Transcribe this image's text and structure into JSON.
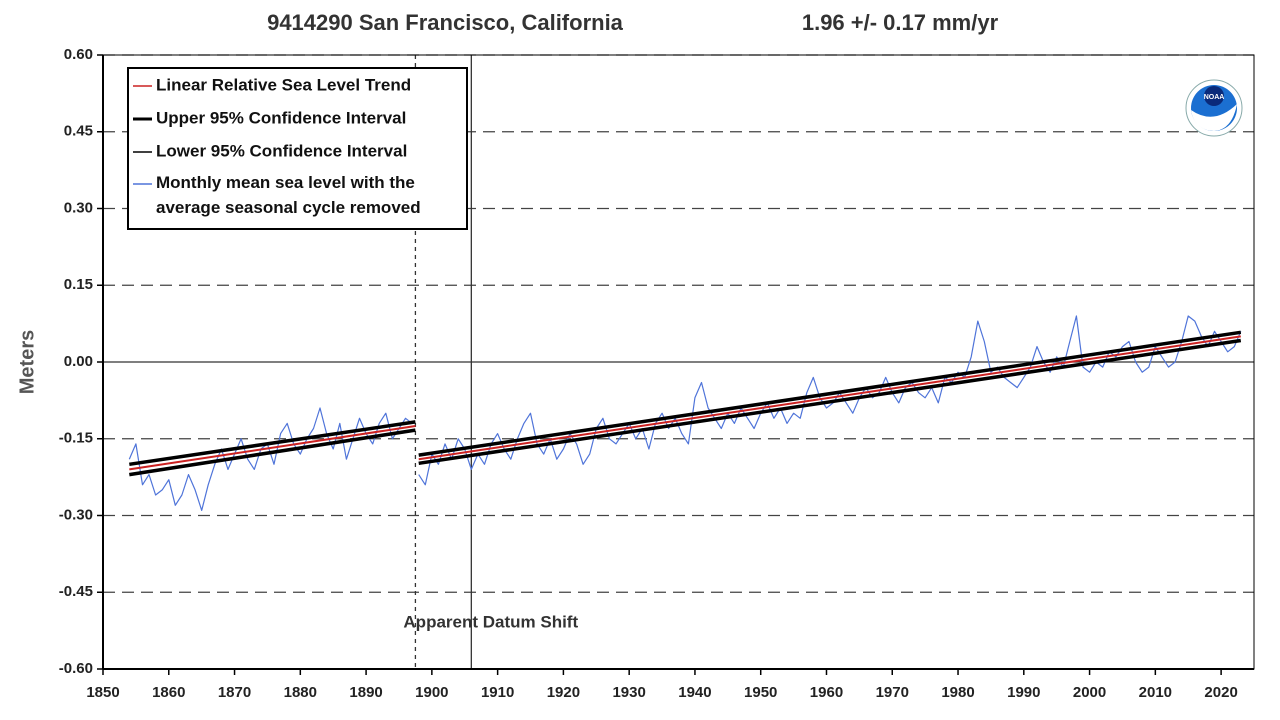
{
  "chart_data": {
    "type": "line",
    "title": "9414290 San Francisco, California",
    "subtitle": "1.96 +/-  0.17 mm/yr",
    "ylabel": "Meters",
    "annotation": "Apparent Datum Shift",
    "logo_text": "NOAA",
    "xlim": [
      1850,
      2025
    ],
    "ylim": [
      -0.6,
      0.6
    ],
    "xticks": [
      1850,
      1860,
      1870,
      1880,
      1890,
      1900,
      1910,
      1920,
      1930,
      1940,
      1950,
      1960,
      1970,
      1980,
      1990,
      2000,
      2010,
      2020
    ],
    "yticks": [
      {
        "value": -0.6,
        "label": "-0.60"
      },
      {
        "value": -0.45,
        "label": "-0.45"
      },
      {
        "value": -0.3,
        "label": "-0.30"
      },
      {
        "value": -0.15,
        "label": "-0.15"
      },
      {
        "value": 0,
        "label": "0.00"
      },
      {
        "value": 0.15,
        "label": "0.15"
      },
      {
        "value": 0.3,
        "label": "0.30"
      },
      {
        "value": 0.45,
        "label": "0.45"
      },
      {
        "value": 0.6,
        "label": "0.60"
      }
    ],
    "grid": true,
    "vlines": [
      {
        "x": 1897.5,
        "style": "dashed"
      },
      {
        "x": 1906,
        "style": "solid"
      }
    ],
    "legend": "upper left",
    "series": [
      {
        "name": "Linear Relative Sea Level Trend",
        "color": "#cc2222",
        "x": [
          1854,
          1897.5,
          1897.5,
          1898,
          2023
        ],
        "values": [
          -0.21,
          -0.125,
          null,
          -0.19,
          0.05
        ]
      },
      {
        "name": "Upper 95% Confidence Interval",
        "color": "#000000",
        "x": [
          1854,
          1897.5,
          1897.5,
          1898,
          2023
        ],
        "values": [
          -0.2,
          -0.117,
          null,
          -0.182,
          0.058
        ]
      },
      {
        "name": "Lower 95% Confidence Interval",
        "color": "#000000",
        "x": [
          1854,
          1897.5,
          1897.5,
          1898,
          2023
        ],
        "values": [
          -0.22,
          -0.133,
          null,
          -0.198,
          0.042
        ]
      },
      {
        "name": "Monthly mean sea level with the\naverage seasonal cycle removed",
        "color": "#4f74d9",
        "x": [
          1854,
          1855,
          1856,
          1857,
          1858,
          1859,
          1860,
          1861,
          1862,
          1863,
          1864,
          1865,
          1866,
          1867,
          1868,
          1869,
          1870,
          1871,
          1872,
          1873,
          1874,
          1875,
          1876,
          1877,
          1878,
          1879,
          1880,
          1881,
          1882,
          1883,
          1884,
          1885,
          1886,
          1887,
          1888,
          1889,
          1890,
          1891,
          1892,
          1893,
          1894,
          1895,
          1896,
          1897,
          1897.5,
          1898,
          1899,
          1900,
          1901,
          1902,
          1903,
          1904,
          1905,
          1906,
          1907,
          1908,
          1909,
          1910,
          1911,
          1912,
          1913,
          1914,
          1915,
          1916,
          1917,
          1918,
          1919,
          1920,
          1921,
          1922,
          1923,
          1924,
          1925,
          1926,
          1927,
          1928,
          1929,
          1930,
          1931,
          1932,
          1933,
          1934,
          1935,
          1936,
          1937,
          1938,
          1939,
          1940,
          1941,
          1942,
          1943,
          1944,
          1945,
          1946,
          1947,
          1948,
          1949,
          1950,
          1951,
          1952,
          1953,
          1954,
          1955,
          1956,
          1957,
          1958,
          1959,
          1960,
          1961,
          1962,
          1963,
          1964,
          1965,
          1966,
          1967,
          1968,
          1969,
          1970,
          1971,
          1972,
          1973,
          1974,
          1975,
          1976,
          1977,
          1978,
          1979,
          1980,
          1981,
          1982,
          1983,
          1984,
          1985,
          1986,
          1987,
          1988,
          1989,
          1990,
          1991,
          1992,
          1993,
          1994,
          1995,
          1996,
          1997,
          1998,
          1999,
          2000,
          2001,
          2002,
          2003,
          2004,
          2005,
          2006,
          2007,
          2008,
          2009,
          2010,
          2011,
          2012,
          2013,
          2014,
          2015,
          2016,
          2017,
          2018,
          2019,
          2020,
          2021,
          2022,
          2023
        ],
        "values": [
          -0.19,
          -0.16,
          -0.24,
          -0.22,
          -0.26,
          -0.25,
          -0.23,
          -0.28,
          -0.26,
          -0.22,
          -0.25,
          -0.29,
          -0.24,
          -0.2,
          -0.17,
          -0.21,
          -0.18,
          -0.15,
          -0.19,
          -0.21,
          -0.17,
          -0.16,
          -0.2,
          -0.14,
          -0.12,
          -0.16,
          -0.18,
          -0.15,
          -0.13,
          -0.09,
          -0.14,
          -0.17,
          -0.12,
          -0.19,
          -0.15,
          -0.11,
          -0.14,
          -0.16,
          -0.12,
          -0.1,
          -0.15,
          -0.13,
          -0.11,
          -0.12,
          null,
          -0.22,
          -0.24,
          -0.18,
          -0.2,
          -0.16,
          -0.19,
          -0.15,
          -0.17,
          -0.21,
          -0.18,
          -0.2,
          -0.16,
          -0.14,
          -0.17,
          -0.19,
          -0.15,
          -0.12,
          -0.1,
          -0.16,
          -0.18,
          -0.15,
          -0.19,
          -0.17,
          -0.14,
          -0.16,
          -0.2,
          -0.18,
          -0.13,
          -0.11,
          -0.15,
          -0.16,
          -0.14,
          -0.12,
          -0.15,
          -0.13,
          -0.17,
          -0.12,
          -0.1,
          -0.13,
          -0.11,
          -0.14,
          -0.16,
          -0.07,
          -0.04,
          -0.09,
          -0.11,
          -0.13,
          -0.1,
          -0.12,
          -0.09,
          -0.11,
          -0.13,
          -0.1,
          -0.08,
          -0.11,
          -0.09,
          -0.12,
          -0.1,
          -0.11,
          -0.06,
          -0.03,
          -0.07,
          -0.09,
          -0.08,
          -0.06,
          -0.08,
          -0.1,
          -0.07,
          -0.05,
          -0.07,
          -0.06,
          -0.03,
          -0.06,
          -0.08,
          -0.05,
          -0.04,
          -0.06,
          -0.07,
          -0.05,
          -0.08,
          -0.03,
          -0.04,
          -0.02,
          -0.03,
          0.01,
          0.08,
          0.04,
          -0.02,
          -0.01,
          -0.03,
          -0.04,
          -0.05,
          -0.03,
          -0.01,
          0.03,
          0,
          -0.02,
          0.01,
          -0.01,
          0.04,
          0.09,
          -0.01,
          -0.02,
          0,
          -0.01,
          0.02,
          0.01,
          0.03,
          0.04,
          0,
          -0.02,
          -0.01,
          0.03,
          0.01,
          -0.01,
          0,
          0.04,
          0.09,
          0.08,
          0.05,
          0.03,
          0.06,
          0.04,
          0.02,
          0.03,
          0.06
        ]
      }
    ]
  }
}
